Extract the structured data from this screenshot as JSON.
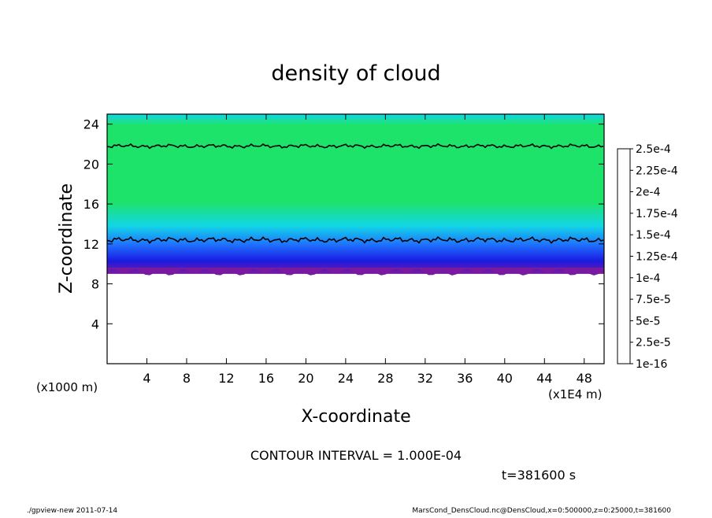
{
  "chart_data": {
    "type": "heatmap",
    "title": "density of cloud",
    "xlabel": "X-coordinate",
    "ylabel": "Z-coordinate",
    "x_unit": "(x1E4 m)",
    "y_unit": "(x1000 m)",
    "xlim": [
      0,
      50
    ],
    "ylim": [
      0,
      25
    ],
    "x_ticks": [
      "4",
      "8",
      "12",
      "16",
      "20",
      "24",
      "28",
      "32",
      "36",
      "40",
      "44",
      "48"
    ],
    "x_tick_values": [
      4,
      8,
      12,
      16,
      20,
      24,
      28,
      32,
      36,
      40,
      44,
      48
    ],
    "y_ticks": [
      "4",
      "8",
      "12",
      "16",
      "20",
      "24"
    ],
    "y_tick_values": [
      4,
      8,
      12,
      16,
      20,
      24
    ],
    "colorbar": {
      "levels": [
        "1e-16",
        "2.5e-5",
        "5e-5",
        "7.5e-5",
        "1e-4",
        "1.25e-4",
        "1.5e-4",
        "1.75e-4",
        "2e-4",
        "2.25e-4",
        "2.5e-4"
      ],
      "colors": [
        "#7a1aa0",
        "#1a1ae0",
        "#1f6fff",
        "#12d6e6",
        "#1ee36a",
        "#44dd22",
        "#9adf10",
        "#f2e100",
        "#ff9a00",
        "#ff3a10",
        "#ff9a9a"
      ]
    },
    "cloud_layer": {
      "base_z": 9,
      "top_z": 22,
      "contour_low_z": 12.4,
      "contour_high_z": 21.8,
      "peak_density": 0.00011
    },
    "contour_interval": "CONTOUR INTERVAL = 1.000E-04",
    "time_label": "t=381600 s"
  },
  "footer": {
    "left": "./gpview-new  2011-07-14",
    "right": "MarsCond_DensCloud.nc@DensCloud,x=0:500000,z=0:25000,t=381600"
  }
}
